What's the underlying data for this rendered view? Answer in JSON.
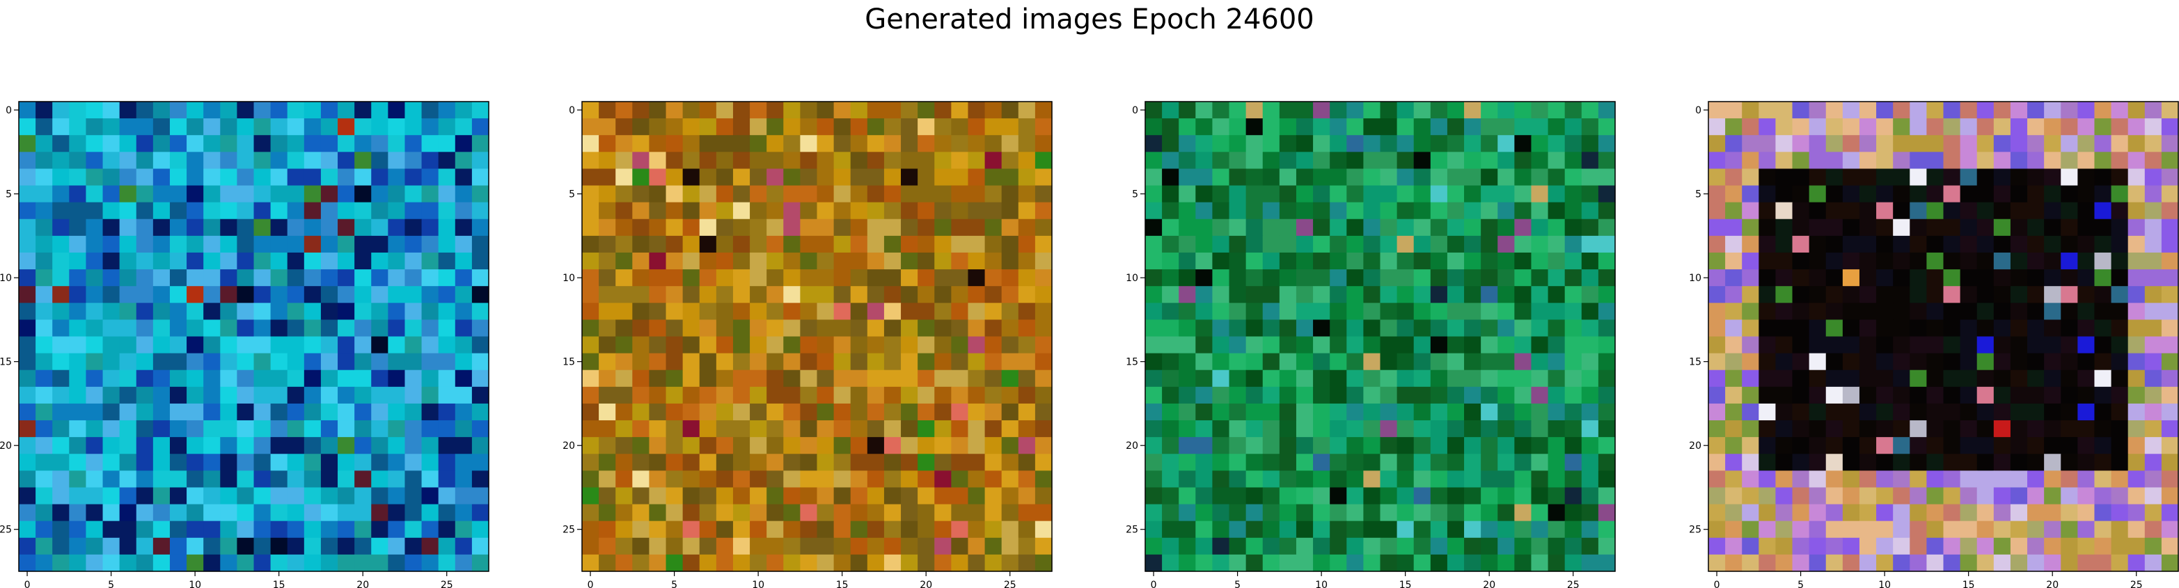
{
  "figure": {
    "title": "Generated images Epoch 24600"
  },
  "chart_data": [
    {
      "type": "heatmap",
      "title": "",
      "xlabel": "",
      "ylabel": "",
      "xlim": [
        -0.5,
        27.5
      ],
      "ylim": [
        27.5,
        -0.5
      ],
      "xticks": [
        0,
        5,
        10,
        15,
        20,
        25
      ],
      "yticks": [
        0,
        5,
        10,
        15,
        20,
        25
      ],
      "grid": false,
      "grid_size": 28,
      "palette": {
        "base": "#0ea9c6",
        "colors": [
          "#14d3e0",
          "#08a7b8",
          "#1163c4",
          "#0f3da8",
          "#22b8d8",
          "#06c0d0",
          "#2e88cc",
          "#0b8ea4",
          "#3fd0f0",
          "#0a5a8c",
          "#041a60",
          "#12c8d4",
          "#1a9f9a",
          "#4bb3e8",
          "#0c7fbf"
        ],
        "accents": [
          "#000a2a",
          "#00126a",
          "#8a2a1a",
          "#b43010",
          "#3a8a30",
          "#5a1a2a"
        ]
      }
    },
    {
      "type": "heatmap",
      "title": "",
      "xlabel": "",
      "ylabel": "",
      "xlim": [
        -0.5,
        27.5
      ],
      "ylim": [
        27.5,
        -0.5
      ],
      "xticks": [
        0,
        5,
        10,
        15,
        20,
        25
      ],
      "yticks": [
        0,
        5,
        10,
        15,
        20,
        25
      ],
      "grid": false,
      "grid_size": 28,
      "palette": {
        "base": "#b88212",
        "colors": [
          "#c8920a",
          "#a4720c",
          "#8a6a10",
          "#d8a01a",
          "#b65a0a",
          "#9a7a18",
          "#c46a14",
          "#7a6018",
          "#d08a20",
          "#a86008",
          "#5e6a12",
          "#b8980e",
          "#8c4a0c",
          "#c8a848",
          "#6a5410"
        ],
        "accents": [
          "#f0c870",
          "#e06a5a",
          "#1a0a06",
          "#8a1030",
          "#2a8a18",
          "#b44a6a",
          "#f4e09a"
        ]
      }
    },
    {
      "type": "heatmap",
      "title": "",
      "xlabel": "",
      "ylabel": "",
      "xlim": [
        -0.5,
        27.5
      ],
      "ylim": [
        27.5,
        -0.5
      ],
      "xticks": [
        0,
        5,
        10,
        15,
        20,
        25
      ],
      "yticks": [
        0,
        5,
        10,
        15,
        20,
        25
      ],
      "grid": false,
      "grid_size": 28,
      "palette": {
        "base": "#0c8a3c",
        "colors": [
          "#0a9a48",
          "#067a32",
          "#18b060",
          "#0c6a2a",
          "#12a878",
          "#2a9a5a",
          "#086024",
          "#1a8a8a",
          "#0e5a20",
          "#22b86a",
          "#0a7a52",
          "#045018",
          "#3ab87a",
          "#147a3a",
          "#0a9a70"
        ],
        "accents": [
          "#020a04",
          "#10263a",
          "#8a4a8a",
          "#c8a860",
          "#4ac8c8",
          "#2a6a9a"
        ]
      }
    },
    {
      "type": "heatmap",
      "title": "",
      "xlabel": "",
      "ylabel": "",
      "xlim": [
        -0.5,
        27.5
      ],
      "ylim": [
        27.5,
        -0.5
      ],
      "xticks": [
        0,
        5,
        10,
        15,
        20,
        25
      ],
      "yticks": [
        0,
        5,
        10,
        15,
        20,
        25
      ],
      "grid": false,
      "grid_size": 28,
      "palette": {
        "base": "#0a0604",
        "border_colors": [
          "#c8a84a",
          "#d8b870",
          "#b89a3a",
          "#a8a868",
          "#9a6ad8",
          "#8a5ae8",
          "#c888d8",
          "#a878c8",
          "#d89858",
          "#c87868",
          "#6a5ad8",
          "#b8a8e8",
          "#e8b888",
          "#7a9a3a",
          "#d8c8e8"
        ],
        "interior_colors": [
          "#0a0604",
          "#12080a",
          "#1a0c06",
          "#060404",
          "#0a1a10",
          "#1a0a14",
          "#0c0c1a"
        ],
        "accents": [
          "#e8d8c8",
          "#c81a1a",
          "#1a1ad8",
          "#e8a040",
          "#3a8a2a",
          "#d87890",
          "#f0f0f8",
          "#2a6a8a",
          "#b8b8c8"
        ]
      }
    }
  ]
}
